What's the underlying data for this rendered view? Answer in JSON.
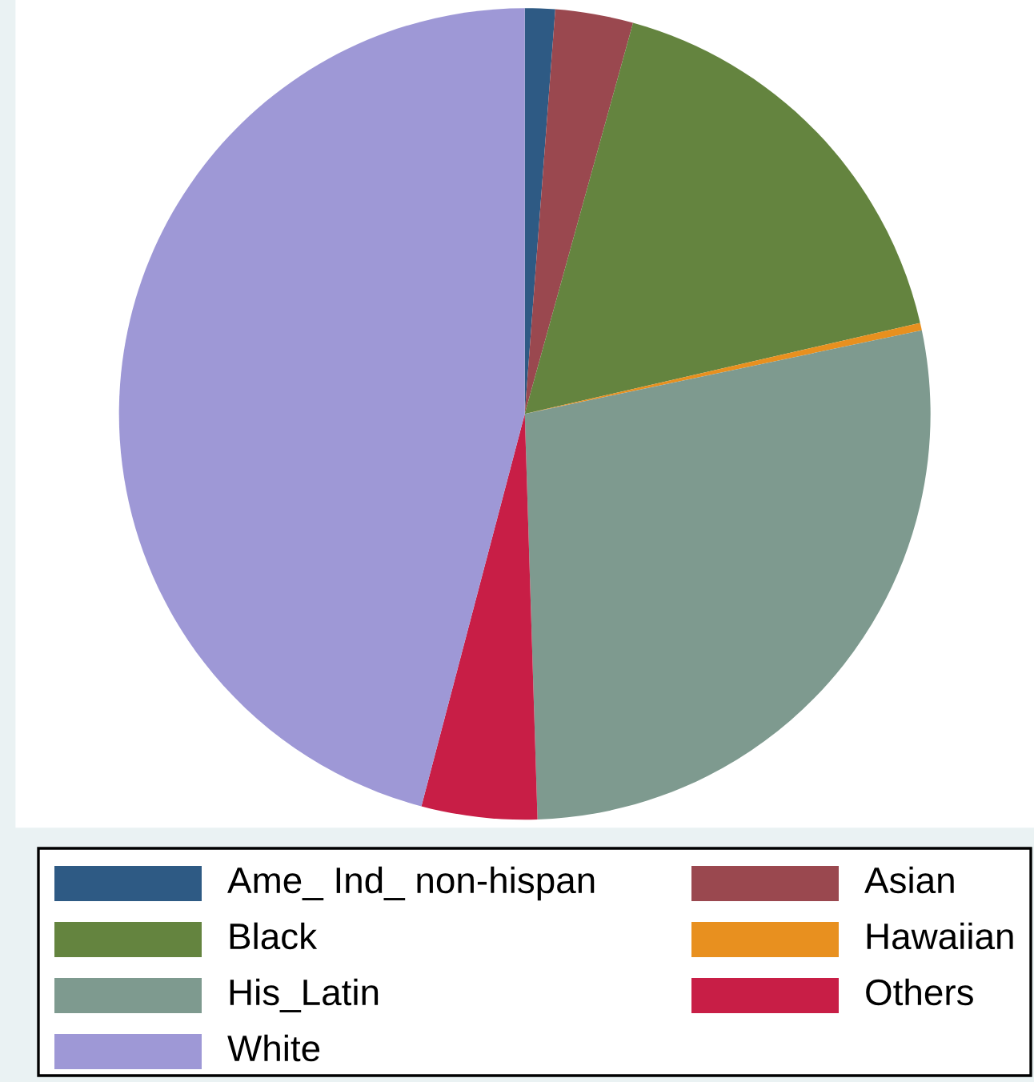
{
  "chart_data": {
    "type": "pie",
    "categories": [
      "Ame_ Ind_ non-hispan",
      "Asian",
      "Black",
      "Hawaiian",
      "His_Latin",
      "Others",
      "White"
    ],
    "values": [
      1.2,
      3.1,
      17.1,
      0.3,
      27.8,
      4.6,
      45.9
    ],
    "colors": [
      "#2e5a84",
      "#9a484f",
      "#64843f",
      "#e8901f",
      "#7e9a8f",
      "#c81e46",
      "#9e98d6"
    ],
    "legend": "bottom"
  }
}
